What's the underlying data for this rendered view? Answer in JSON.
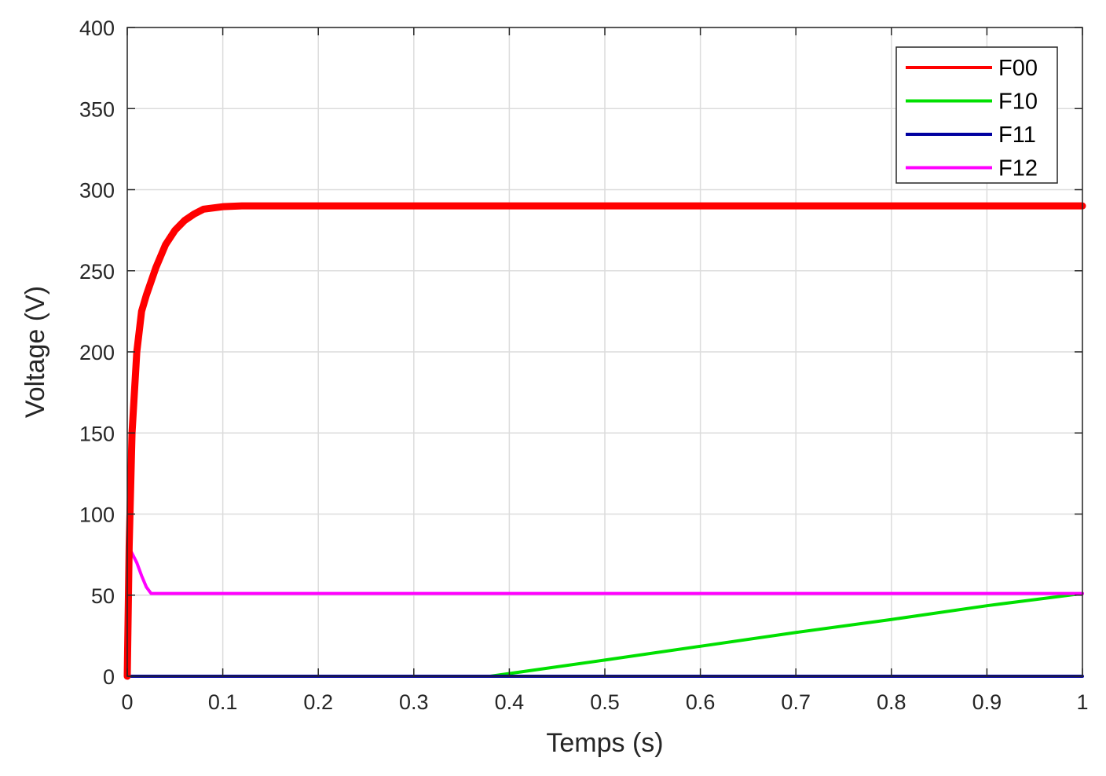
{
  "chart_data": {
    "type": "line",
    "title": "",
    "xlabel": "Temps (s)",
    "ylabel": "Voltage (V)",
    "xlim": [
      0,
      1
    ],
    "ylim": [
      0,
      400
    ],
    "xticks": [
      0,
      0.1,
      0.2,
      0.3,
      0.4,
      0.5,
      0.6,
      0.7,
      0.8,
      0.9,
      1
    ],
    "xtick_labels": [
      "0",
      "0.1",
      "0.2",
      "0.3",
      "0.4",
      "0.5",
      "0.6",
      "0.7",
      "0.8",
      "0.9",
      "1"
    ],
    "yticks": [
      0,
      50,
      100,
      150,
      200,
      250,
      300,
      350,
      400
    ],
    "ytick_labels": [
      "0",
      "50",
      "100",
      "150",
      "200",
      "250",
      "300",
      "350",
      "400"
    ],
    "grid": true,
    "legend_position": "top-right",
    "series": [
      {
        "name": "F00",
        "color": "#ff0000",
        "x": [
          0,
          0.002,
          0.005,
          0.01,
          0.015,
          0.02,
          0.03,
          0.04,
          0.05,
          0.06,
          0.07,
          0.08,
          0.1,
          0.12,
          0.15,
          0.2,
          0.3,
          0.5,
          0.7,
          1.0
        ],
        "y": [
          0,
          80,
          150,
          200,
          225,
          235,
          252,
          266,
          275,
          281,
          285,
          288,
          289.5,
          290,
          290,
          290,
          290,
          290,
          290,
          290
        ]
      },
      {
        "name": "F10",
        "color": "#00e000",
        "x": [
          0,
          0.38,
          0.5,
          0.6,
          0.7,
          0.8,
          0.9,
          1.0
        ],
        "y": [
          0,
          0,
          10,
          18.5,
          27,
          35,
          43.5,
          51
        ]
      },
      {
        "name": "F11",
        "color": "#0000a0",
        "x": [
          0,
          1.0
        ],
        "y": [
          0,
          0
        ]
      },
      {
        "name": "F12",
        "color": "#ff00ff",
        "x": [
          0,
          0.001,
          0.004,
          0.01,
          0.015,
          0.02,
          0.025,
          0.05,
          0.3,
          0.6,
          1.0
        ],
        "y": [
          0,
          75,
          77,
          70,
          62,
          55,
          51,
          51,
          51,
          51,
          51
        ]
      }
    ]
  }
}
